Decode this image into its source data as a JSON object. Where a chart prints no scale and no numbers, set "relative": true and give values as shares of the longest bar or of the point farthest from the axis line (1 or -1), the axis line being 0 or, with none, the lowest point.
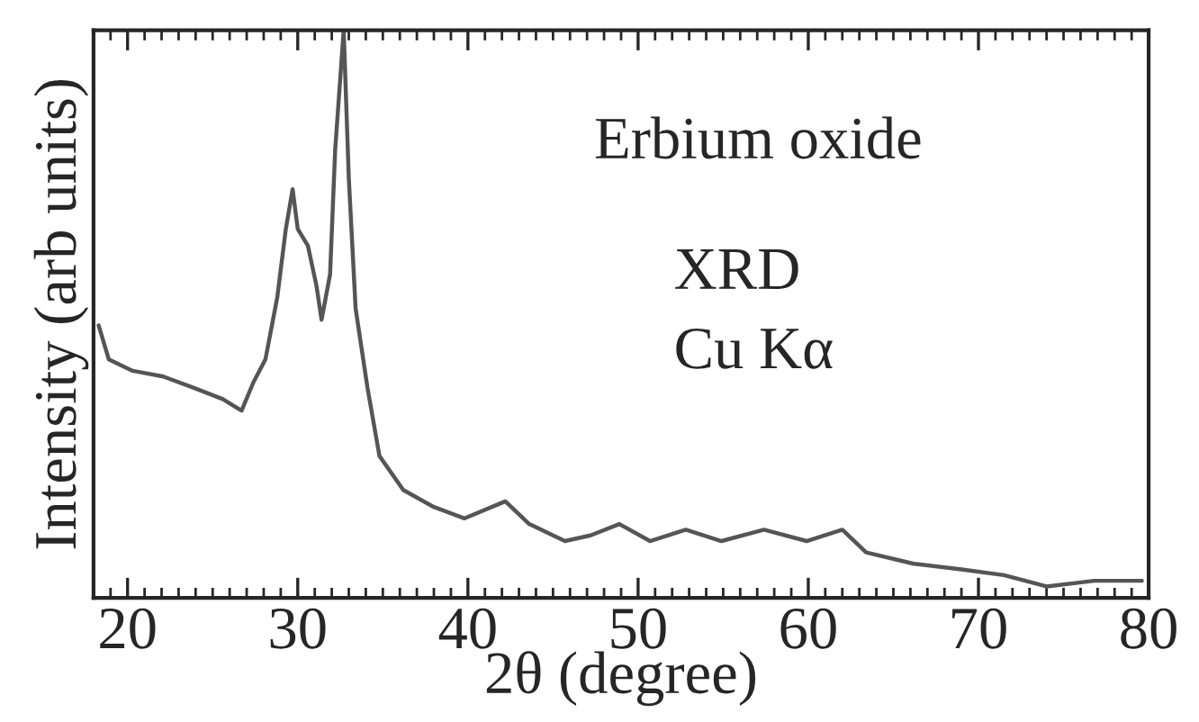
{
  "chart_data": {
    "type": "line",
    "relative": true,
    "xlabel": "2θ (degree)",
    "ylabel": "Intensity (arb units)",
    "annotations": [
      "Erbium oxide",
      "XRD",
      "Cu Kα"
    ],
    "xlim": [
      18,
      80
    ],
    "xticks": [
      20,
      30,
      40,
      50,
      60,
      70,
      80
    ],
    "tick_labels": "x",
    "grid": false,
    "legend": false,
    "x": [
      18.3,
      18.9,
      20.3,
      22.1,
      23.9,
      25.6,
      26.7,
      27.4,
      28.1,
      28.8,
      29.3,
      29.7,
      30.0,
      30.6,
      31.1,
      31.4,
      31.9,
      32.2,
      32.7,
      33.0,
      33.4,
      34.1,
      34.8,
      36.2,
      38.0,
      39.8,
      42.2,
      43.6,
      45.7,
      47.2,
      48.9,
      50.7,
      52.8,
      54.9,
      57.4,
      59.9,
      62.0,
      63.4,
      66.2,
      69.0,
      71.5,
      74.0,
      76.8,
      79.6
    ],
    "series": [
      {
        "color": "#555555",
        "values": [
          0.48,
          0.42,
          0.4,
          0.39,
          0.37,
          0.35,
          0.33,
          0.38,
          0.42,
          0.53,
          0.65,
          0.72,
          0.65,
          0.62,
          0.55,
          0.49,
          0.57,
          0.79,
          1.0,
          0.74,
          0.51,
          0.37,
          0.25,
          0.19,
          0.16,
          0.14,
          0.17,
          0.13,
          0.1,
          0.11,
          0.13,
          0.1,
          0.12,
          0.1,
          0.12,
          0.1,
          0.12,
          0.08,
          0.06,
          0.05,
          0.04,
          0.02,
          0.03,
          0.03
        ]
      }
    ]
  }
}
